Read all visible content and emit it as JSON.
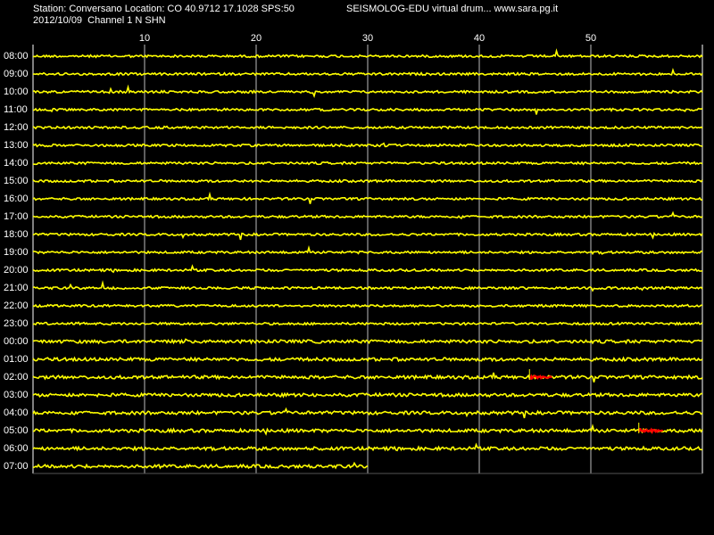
{
  "header": {
    "station_line": "Station: Conversano Location: CO 40.9712 17.1028 SPS:50",
    "date_line": "2012/10/09  Channel 1 N SHN",
    "title": "SEISMOLOG-EDU virtual drum... www.sara.pg.it"
  },
  "minute_axis": {
    "ticks": [
      "10",
      "20",
      "30",
      "40",
      "50"
    ],
    "range": [
      0,
      60
    ]
  },
  "rows": {
    "labels": [
      "08:00",
      "09:00",
      "10:00",
      "11:00",
      "12:00",
      "13:00",
      "14:00",
      "15:00",
      "16:00",
      "17:00",
      "18:00",
      "19:00",
      "20:00",
      "21:00",
      "22:00",
      "23:00",
      "00:00",
      "01:00",
      "02:00",
      "03:00",
      "04:00",
      "05:00",
      "06:00",
      "07:00"
    ],
    "last_row_end_minute": 30
  },
  "events": [
    {
      "row": "02:00",
      "start_minute": 44.5,
      "end_minute": 46.5
    },
    {
      "row": "05:00",
      "start_minute": 54.3,
      "end_minute": 56.5
    }
  ],
  "colors": {
    "background": "#000000",
    "trace": "#ffff00",
    "event": "#ff0000",
    "grid": "#ffffff",
    "text": "#ffffff"
  }
}
